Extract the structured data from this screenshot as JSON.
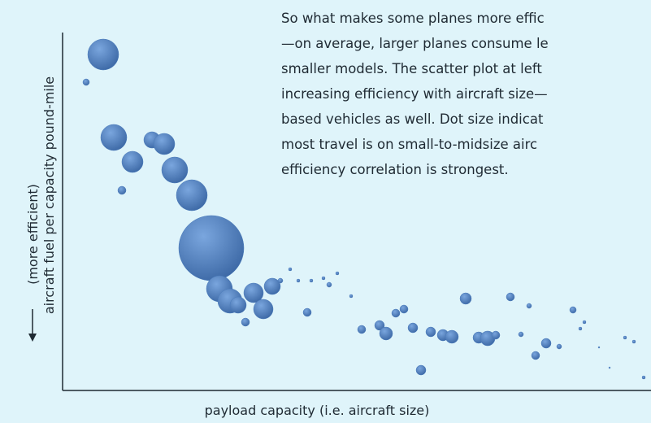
{
  "chart_data": {
    "type": "scatter",
    "annotation": [
      "So what makes some planes more effic",
      "—on average, larger planes consume le",
      "smaller models. The scatter plot at left",
      "increasing efficiency with aircraft size—",
      "based vehicles as well. Dot size indicat",
      "most travel is on small-to-midsize airc",
      "efficiency correlation is strongest."
    ],
    "x_label": "payload capacity (i.e. aircraft size)",
    "y_label": "aircraft fuel per capacity pound-mile",
    "y_label_note": "(more efficient)",
    "color": "#4a7bbb",
    "xlim": [
      0,
      724
    ],
    "ylim": [
      0,
      440
    ],
    "x": [
      50,
      29,
      63,
      86,
      73,
      110,
      125,
      138,
      159,
      183,
      193,
      206,
      216,
      235,
      247,
      258,
      225,
      268,
      280,
      290,
      306,
      321,
      328,
      338,
      301,
      355,
      368,
      390,
      398,
      410,
      420,
      431,
      453,
      468,
      479,
      496,
      512,
      523,
      533,
      551,
      574,
      564,
      582,
      595,
      611,
      628,
      637,
      642,
      660,
      692,
      703,
      715,
      673,
      441
    ],
    "values": [
      413,
      379,
      311,
      281,
      246,
      308,
      303,
      271,
      240,
      175,
      125,
      110,
      105,
      120,
      100,
      128,
      84,
      135,
      149,
      135,
      135,
      138,
      130,
      144,
      96,
      116,
      75,
      80,
      70,
      95,
      100,
      77,
      72,
      68,
      66,
      113,
      65,
      64,
      68,
      115,
      104,
      69,
      43,
      58,
      54,
      99,
      76,
      84,
      53,
      65,
      60,
      16,
      28,
      25
    ],
    "sizes": [
      19,
      4,
      16,
      13,
      5,
      10,
      13,
      16,
      19,
      40,
      16,
      15,
      10,
      12,
      12,
      10,
      5,
      3,
      2,
      2,
      2,
      2,
      3,
      2,
      5,
      2,
      5,
      6,
      8,
      5,
      5,
      6,
      6,
      7,
      8,
      7,
      7,
      9,
      5,
      5,
      3,
      3,
      5,
      6,
      3,
      4,
      2,
      2,
      1,
      2,
      2,
      2,
      1,
      6
    ]
  }
}
